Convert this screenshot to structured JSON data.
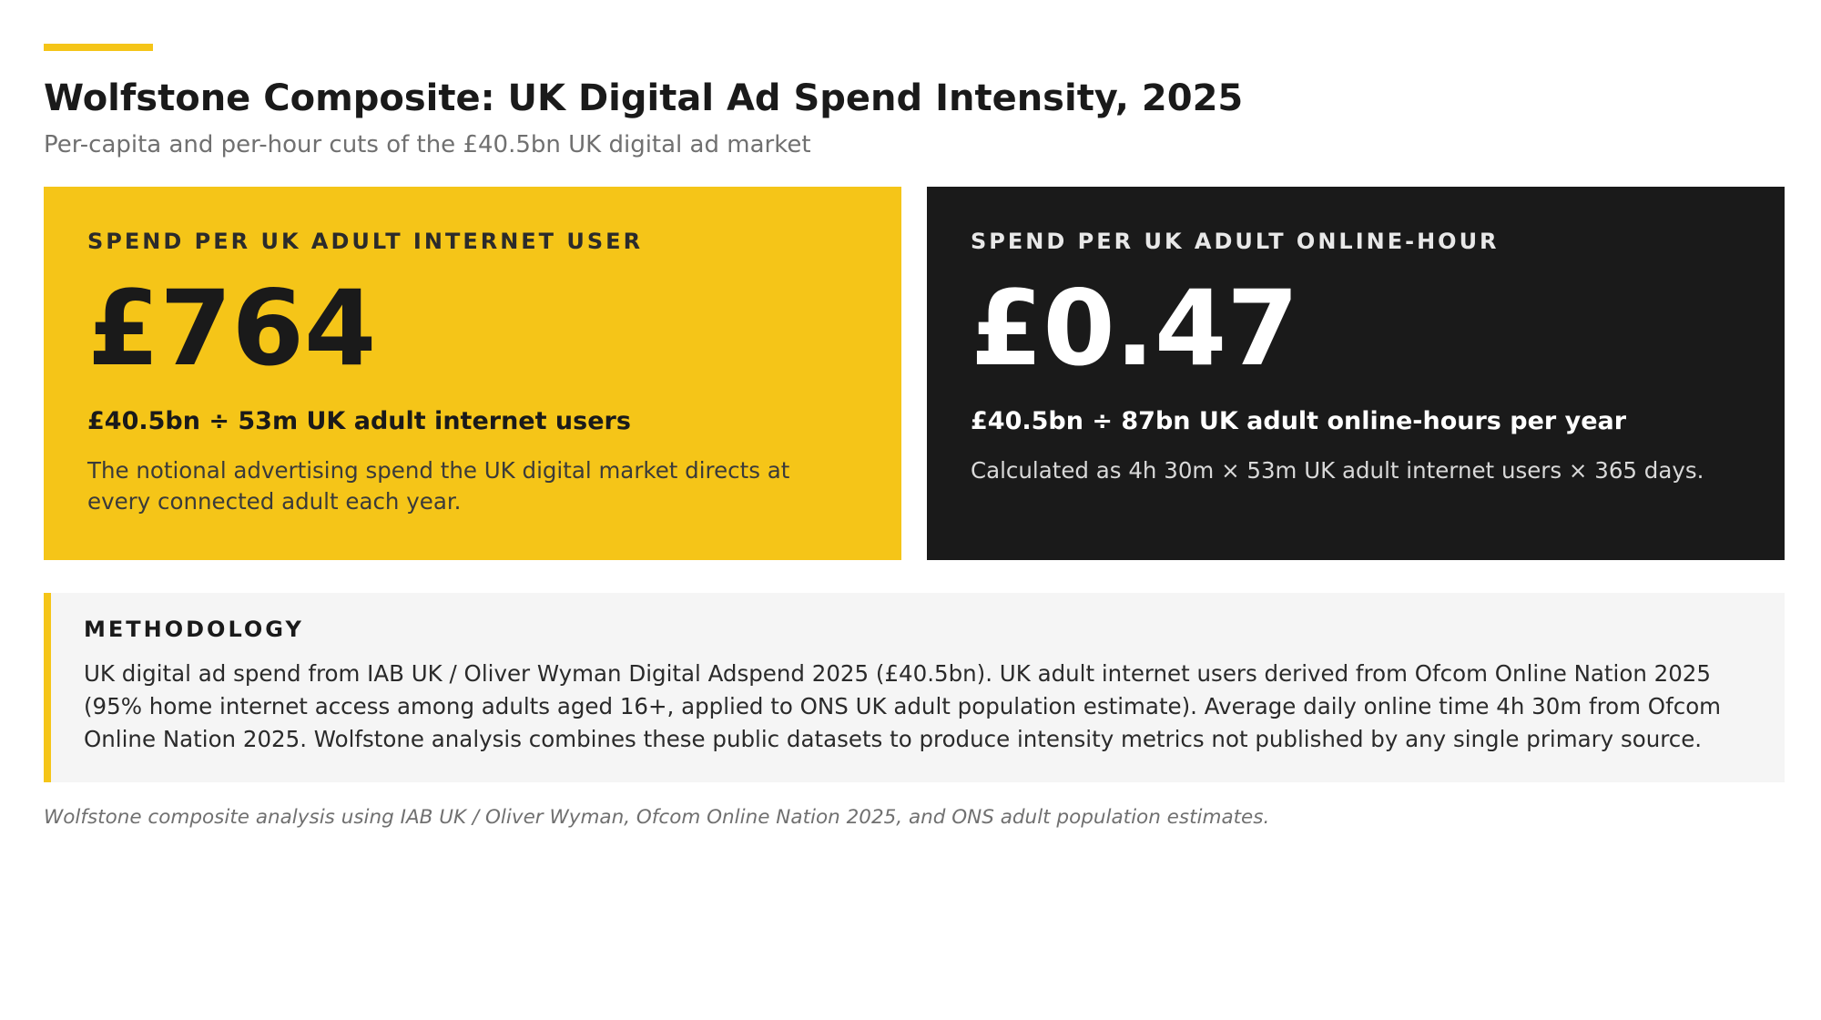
{
  "header": {
    "title": "Wolfstone Composite: UK Digital Ad Spend Intensity, 2025",
    "subtitle": "Per-capita and per-hour cuts of the £40.5bn UK digital ad market"
  },
  "cards": [
    {
      "label": "SPEND PER UK ADULT INTERNET USER",
      "value": "£764",
      "formula": "£40.5bn ÷ 53m UK adult internet users",
      "description": "The notional advertising spend the UK digital market directs at every connected adult each year.",
      "background_color": "#f5c518"
    },
    {
      "label": "SPEND PER UK ADULT ONLINE-HOUR",
      "value": "£0.47",
      "formula": "£40.5bn ÷ 87bn UK adult online-hours per year",
      "description": "Calculated as 4h 30m × 53m UK adult internet users × 365 days.",
      "background_color": "#1a1a1a"
    }
  ],
  "methodology": {
    "title": "METHODOLOGY",
    "body": "UK digital ad spend from IAB UK / Oliver Wyman Digital Adspend 2025 (£40.5bn). UK adult internet users derived from Ofcom Online Nation 2025 (95% home internet access among adults aged 16+, applied to ONS UK adult population estimate). Average daily online time 4h 30m from Ofcom Online Nation 2025. Wolfstone analysis combines these public datasets to produce intensity metrics not published by any single primary source."
  },
  "source_note": "Wolfstone composite analysis using IAB UK / Oliver Wyman, Ofcom Online Nation 2025, and ONS adult population estimates.",
  "colors": {
    "accent": "#f5c518",
    "dark": "#1a1a1a",
    "panel": "#f5f5f5",
    "muted_text": "#707070"
  }
}
